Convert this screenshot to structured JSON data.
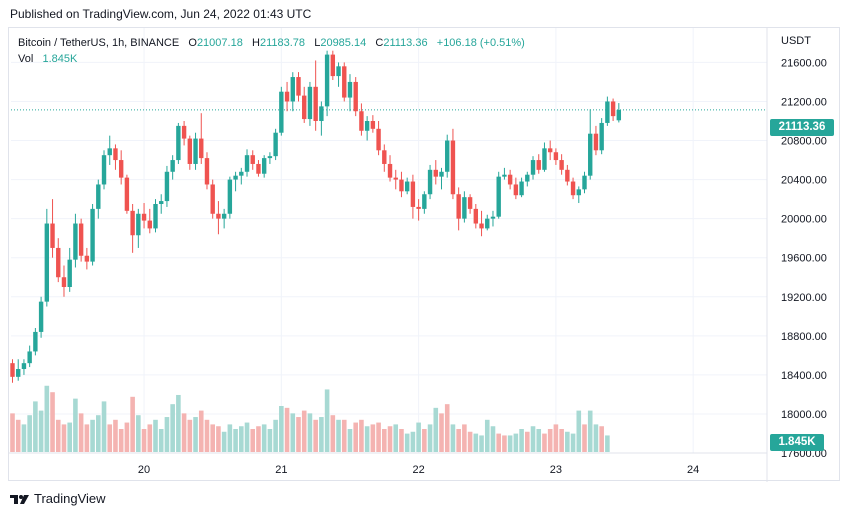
{
  "header": {
    "published": "Published on TradingView.com, Jun 24, 2022 01:43 UTC"
  },
  "legend": {
    "symbol": "Bitcoin / TetherUS, 1h, BINANCE",
    "o_label": "O",
    "o_value": "21007.18",
    "h_label": "H",
    "h_value": "21183.78",
    "l_label": "L",
    "l_value": "20985.14",
    "c_label": "C",
    "c_value": "21113.36",
    "change": "+106.18 (+0.51%)",
    "vol_label": "Vol",
    "vol_value": "1.845K"
  },
  "axis": {
    "currency": "USDT"
  },
  "badges": {
    "price": "21113.36",
    "volume": "1.845K"
  },
  "footer": {
    "brand": "TradingView"
  },
  "colors": {
    "up": "#26a69a",
    "down": "#ef5350",
    "vol_up": "#a7d9d3",
    "vol_down": "#f4b3b1",
    "grid": "#f0f3fa"
  },
  "chart_data": {
    "type": "candlestick",
    "title": "Bitcoin / TetherUS, 1h, BINANCE",
    "ylim": [
      17600,
      21850
    ],
    "y_ticks": [
      "21600.00",
      "21200.00",
      "20800.00",
      "20400.00",
      "20000.00",
      "19600.00",
      "19200.00",
      "18800.00",
      "18400.00",
      "18000.00",
      "17600.00"
    ],
    "y_tick_values": [
      21600,
      21200,
      20800,
      20400,
      20000,
      19600,
      19200,
      18800,
      18400,
      18000,
      17600
    ],
    "x_ticks": [
      {
        "label": "20",
        "bar": 23
      },
      {
        "label": "21",
        "bar": 47
      },
      {
        "label": "22",
        "bar": 71
      },
      {
        "label": "23",
        "bar": 95
      },
      {
        "label": "24",
        "bar": 119
      }
    ],
    "current_price": 21113.36,
    "series": [
      {
        "name": "Bitcoin / TetherUS",
        "type": "candlestick",
        "ohlc": [
          [
            18520,
            18560,
            18320,
            18380
          ],
          [
            18380,
            18560,
            18340,
            18460
          ],
          [
            18460,
            18560,
            18400,
            18520
          ],
          [
            18520,
            18700,
            18480,
            18640
          ],
          [
            18640,
            18880,
            18600,
            18840
          ],
          [
            18840,
            19200,
            18780,
            19150
          ],
          [
            19150,
            20100,
            19100,
            19950
          ],
          [
            19950,
            20200,
            19600,
            19700
          ],
          [
            19700,
            19800,
            19350,
            19400
          ],
          [
            19400,
            19520,
            19200,
            19300
          ],
          [
            19300,
            19700,
            19250,
            19580
          ],
          [
            19580,
            20050,
            19500,
            19950
          ],
          [
            19950,
            20000,
            19560,
            19620
          ],
          [
            19620,
            19700,
            19480,
            19560
          ],
          [
            19560,
            20150,
            19520,
            20100
          ],
          [
            20100,
            20400,
            20000,
            20350
          ],
          [
            20350,
            20700,
            20300,
            20650
          ],
          [
            20650,
            20850,
            20550,
            20720
          ],
          [
            20720,
            20760,
            20500,
            20600
          ],
          [
            20600,
            20700,
            20350,
            20420
          ],
          [
            20420,
            20450,
            20050,
            20080
          ],
          [
            20080,
            20150,
            19650,
            19830
          ],
          [
            19830,
            20100,
            19700,
            20050
          ],
          [
            20050,
            20160,
            19900,
            19980
          ],
          [
            19980,
            20100,
            19850,
            19900
          ],
          [
            19900,
            20200,
            19860,
            20150
          ],
          [
            20150,
            20250,
            20050,
            20180
          ],
          [
            20180,
            20540,
            20120,
            20480
          ],
          [
            20480,
            20650,
            20400,
            20600
          ],
          [
            20600,
            20980,
            20560,
            20950
          ],
          [
            20950,
            21000,
            20750,
            20820
          ],
          [
            20820,
            20850,
            20500,
            20560
          ],
          [
            20560,
            20880,
            20500,
            20820
          ],
          [
            20820,
            21080,
            20560,
            20620
          ],
          [
            20620,
            20680,
            20300,
            20350
          ],
          [
            20350,
            20400,
            20000,
            20050
          ],
          [
            20050,
            20180,
            19840,
            20000
          ],
          [
            20000,
            20100,
            19900,
            20050
          ],
          [
            20050,
            20430,
            20000,
            20400
          ],
          [
            20400,
            20480,
            20280,
            20440
          ],
          [
            20440,
            20520,
            20350,
            20480
          ],
          [
            20480,
            20710,
            20430,
            20650
          ],
          [
            20650,
            20700,
            20500,
            20560
          ],
          [
            20560,
            20600,
            20430,
            20460
          ],
          [
            20460,
            20650,
            20420,
            20620
          ],
          [
            20620,
            20680,
            20560,
            20640
          ],
          [
            20640,
            20920,
            20600,
            20880
          ],
          [
            20880,
            21350,
            20850,
            21300
          ],
          [
            21300,
            21400,
            21100,
            21200
          ],
          [
            21200,
            21500,
            21100,
            21450
          ],
          [
            21450,
            21500,
            21200,
            21260
          ],
          [
            21260,
            21350,
            20980,
            21020
          ],
          [
            21020,
            21400,
            20950,
            21350
          ],
          [
            21350,
            21620,
            20900,
            21000
          ],
          [
            21000,
            21200,
            20850,
            21150
          ],
          [
            21150,
            21720,
            21050,
            21680
          ],
          [
            21680,
            21720,
            21420,
            21460
          ],
          [
            21460,
            21600,
            21350,
            21560
          ],
          [
            21560,
            21600,
            21200,
            21240
          ],
          [
            21240,
            21480,
            21100,
            21400
          ],
          [
            21400,
            21450,
            21050,
            21100
          ],
          [
            21100,
            21180,
            20850,
            20900
          ],
          [
            20900,
            21050,
            20800,
            21000
          ],
          [
            21000,
            21060,
            20880,
            20920
          ],
          [
            20920,
            21000,
            20650,
            20700
          ],
          [
            20700,
            20760,
            20480,
            20560
          ],
          [
            20560,
            20650,
            20380,
            20420
          ],
          [
            20420,
            20500,
            20300,
            20400
          ],
          [
            20400,
            20480,
            20220,
            20280
          ],
          [
            20280,
            20420,
            20250,
            20380
          ],
          [
            20380,
            20450,
            20000,
            20120
          ],
          [
            20120,
            20200,
            19980,
            20100
          ],
          [
            20100,
            20280,
            20050,
            20250
          ],
          [
            20250,
            20550,
            20200,
            20500
          ],
          [
            20500,
            20600,
            20350,
            20430
          ],
          [
            20430,
            20520,
            20300,
            20480
          ],
          [
            20480,
            20860,
            20420,
            20800
          ],
          [
            20800,
            20920,
            20200,
            20250
          ],
          [
            20250,
            20320,
            19880,
            20000
          ],
          [
            20000,
            20280,
            19960,
            20220
          ],
          [
            20220,
            20250,
            20050,
            20100
          ],
          [
            20100,
            20150,
            19900,
            19950
          ],
          [
            19950,
            20080,
            19820,
            19900
          ],
          [
            19900,
            20040,
            19880,
            20000
          ],
          [
            20000,
            20080,
            19920,
            20020
          ],
          [
            20020,
            20480,
            20000,
            20430
          ],
          [
            20430,
            20520,
            20400,
            20450
          ],
          [
            20450,
            20500,
            20300,
            20350
          ],
          [
            20350,
            20420,
            20200,
            20240
          ],
          [
            20240,
            20420,
            20220,
            20380
          ],
          [
            20380,
            20480,
            20330,
            20450
          ],
          [
            20450,
            20640,
            20400,
            20600
          ],
          [
            20600,
            20660,
            20460,
            20500
          ],
          [
            20500,
            20780,
            20480,
            20720
          ],
          [
            20720,
            20800,
            20600,
            20680
          ],
          [
            20680,
            20720,
            20550,
            20600
          ],
          [
            20600,
            20660,
            20450,
            20500
          ],
          [
            20500,
            20550,
            20340,
            20380
          ],
          [
            20380,
            20420,
            20200,
            20240
          ],
          [
            20240,
            20330,
            20160,
            20300
          ],
          [
            20300,
            20480,
            20260,
            20440
          ],
          [
            20440,
            21120,
            20400,
            20870
          ],
          [
            20870,
            20950,
            20650,
            20700
          ],
          [
            20700,
            21030,
            20660,
            20980
          ],
          [
            20980,
            21250,
            20950,
            21200
          ],
          [
            21200,
            21230,
            21000,
            21050
          ],
          [
            21007.18,
            21183.78,
            20985.14,
            21113.36
          ]
        ]
      }
    ],
    "volume": [
      {
        "u": 0,
        "v": 0.42
      },
      {
        "u": 0,
        "v": 0.35
      },
      {
        "u": 1,
        "v": 0.3
      },
      {
        "u": 1,
        "v": 0.4
      },
      {
        "u": 1,
        "v": 0.55
      },
      {
        "u": 1,
        "v": 0.45
      },
      {
        "u": 1,
        "v": 0.72
      },
      {
        "u": 0,
        "v": 0.65
      },
      {
        "u": 0,
        "v": 0.35
      },
      {
        "u": 0,
        "v": 0.3
      },
      {
        "u": 1,
        "v": 0.32
      },
      {
        "u": 1,
        "v": 0.58
      },
      {
        "u": 0,
        "v": 0.42
      },
      {
        "u": 0,
        "v": 0.3
      },
      {
        "u": 1,
        "v": 0.35
      },
      {
        "u": 1,
        "v": 0.4
      },
      {
        "u": 1,
        "v": 0.55
      },
      {
        "u": 0,
        "v": 0.3
      },
      {
        "u": 0,
        "v": 0.35
      },
      {
        "u": 0,
        "v": 0.25
      },
      {
        "u": 0,
        "v": 0.32
      },
      {
        "u": 0,
        "v": 0.6
      },
      {
        "u": 1,
        "v": 0.4
      },
      {
        "u": 0,
        "v": 0.25
      },
      {
        "u": 0,
        "v": 0.3
      },
      {
        "u": 1,
        "v": 0.35
      },
      {
        "u": 1,
        "v": 0.25
      },
      {
        "u": 1,
        "v": 0.38
      },
      {
        "u": 1,
        "v": 0.52
      },
      {
        "u": 1,
        "v": 0.62
      },
      {
        "u": 0,
        "v": 0.42
      },
      {
        "u": 0,
        "v": 0.35
      },
      {
        "u": 1,
        "v": 0.38
      },
      {
        "u": 0,
        "v": 0.45
      },
      {
        "u": 0,
        "v": 0.35
      },
      {
        "u": 0,
        "v": 0.3
      },
      {
        "u": 0,
        "v": 0.28
      },
      {
        "u": 1,
        "v": 0.22
      },
      {
        "u": 1,
        "v": 0.3
      },
      {
        "u": 1,
        "v": 0.25
      },
      {
        "u": 1,
        "v": 0.28
      },
      {
        "u": 1,
        "v": 0.32
      },
      {
        "u": 0,
        "v": 0.25
      },
      {
        "u": 0,
        "v": 0.28
      },
      {
        "u": 1,
        "v": 0.3
      },
      {
        "u": 1,
        "v": 0.25
      },
      {
        "u": 1,
        "v": 0.35
      },
      {
        "u": 1,
        "v": 0.5
      },
      {
        "u": 0,
        "v": 0.48
      },
      {
        "u": 1,
        "v": 0.42
      },
      {
        "u": 0,
        "v": 0.38
      },
      {
        "u": 0,
        "v": 0.45
      },
      {
        "u": 1,
        "v": 0.42
      },
      {
        "u": 0,
        "v": 0.35
      },
      {
        "u": 1,
        "v": 0.38
      },
      {
        "u": 1,
        "v": 0.68
      },
      {
        "u": 0,
        "v": 0.4
      },
      {
        "u": 1,
        "v": 0.35
      },
      {
        "u": 0,
        "v": 0.35
      },
      {
        "u": 1,
        "v": 0.25
      },
      {
        "u": 0,
        "v": 0.32
      },
      {
        "u": 0,
        "v": 0.35
      },
      {
        "u": 1,
        "v": 0.28
      },
      {
        "u": 0,
        "v": 0.3
      },
      {
        "u": 0,
        "v": 0.32
      },
      {
        "u": 0,
        "v": 0.25
      },
      {
        "u": 0,
        "v": 0.28
      },
      {
        "u": 1,
        "v": 0.3
      },
      {
        "u": 0,
        "v": 0.25
      },
      {
        "u": 1,
        "v": 0.2
      },
      {
        "u": 1,
        "v": 0.22
      },
      {
        "u": 1,
        "v": 0.32
      },
      {
        "u": 0,
        "v": 0.25
      },
      {
        "u": 1,
        "v": 0.3
      },
      {
        "u": 1,
        "v": 0.48
      },
      {
        "u": 0,
        "v": 0.42
      },
      {
        "u": 0,
        "v": 0.52
      },
      {
        "u": 1,
        "v": 0.3
      },
      {
        "u": 0,
        "v": 0.25
      },
      {
        "u": 0,
        "v": 0.3
      },
      {
        "u": 0,
        "v": 0.22
      },
      {
        "u": 1,
        "v": 0.2
      },
      {
        "u": 1,
        "v": 0.18
      },
      {
        "u": 1,
        "v": 0.35
      },
      {
        "u": 1,
        "v": 0.28
      },
      {
        "u": 0,
        "v": 0.2
      },
      {
        "u": 0,
        "v": 0.18
      },
      {
        "u": 1,
        "v": 0.18
      },
      {
        "u": 1,
        "v": 0.2
      },
      {
        "u": 1,
        "v": 0.25
      },
      {
        "u": 0,
        "v": 0.22
      },
      {
        "u": 1,
        "v": 0.28
      },
      {
        "u": 1,
        "v": 0.25
      },
      {
        "u": 0,
        "v": 0.2
      },
      {
        "u": 0,
        "v": 0.25
      },
      {
        "u": 0,
        "v": 0.3
      },
      {
        "u": 0,
        "v": 0.25
      },
      {
        "u": 1,
        "v": 0.22
      },
      {
        "u": 1,
        "v": 0.2
      },
      {
        "u": 1,
        "v": 0.45
      },
      {
        "u": 0,
        "v": 0.3
      },
      {
        "u": 1,
        "v": 0.45
      },
      {
        "u": 1,
        "v": 0.3
      },
      {
        "u": 0,
        "v": 0.28
      },
      {
        "u": 1,
        "v": 0.18
      }
    ]
  }
}
